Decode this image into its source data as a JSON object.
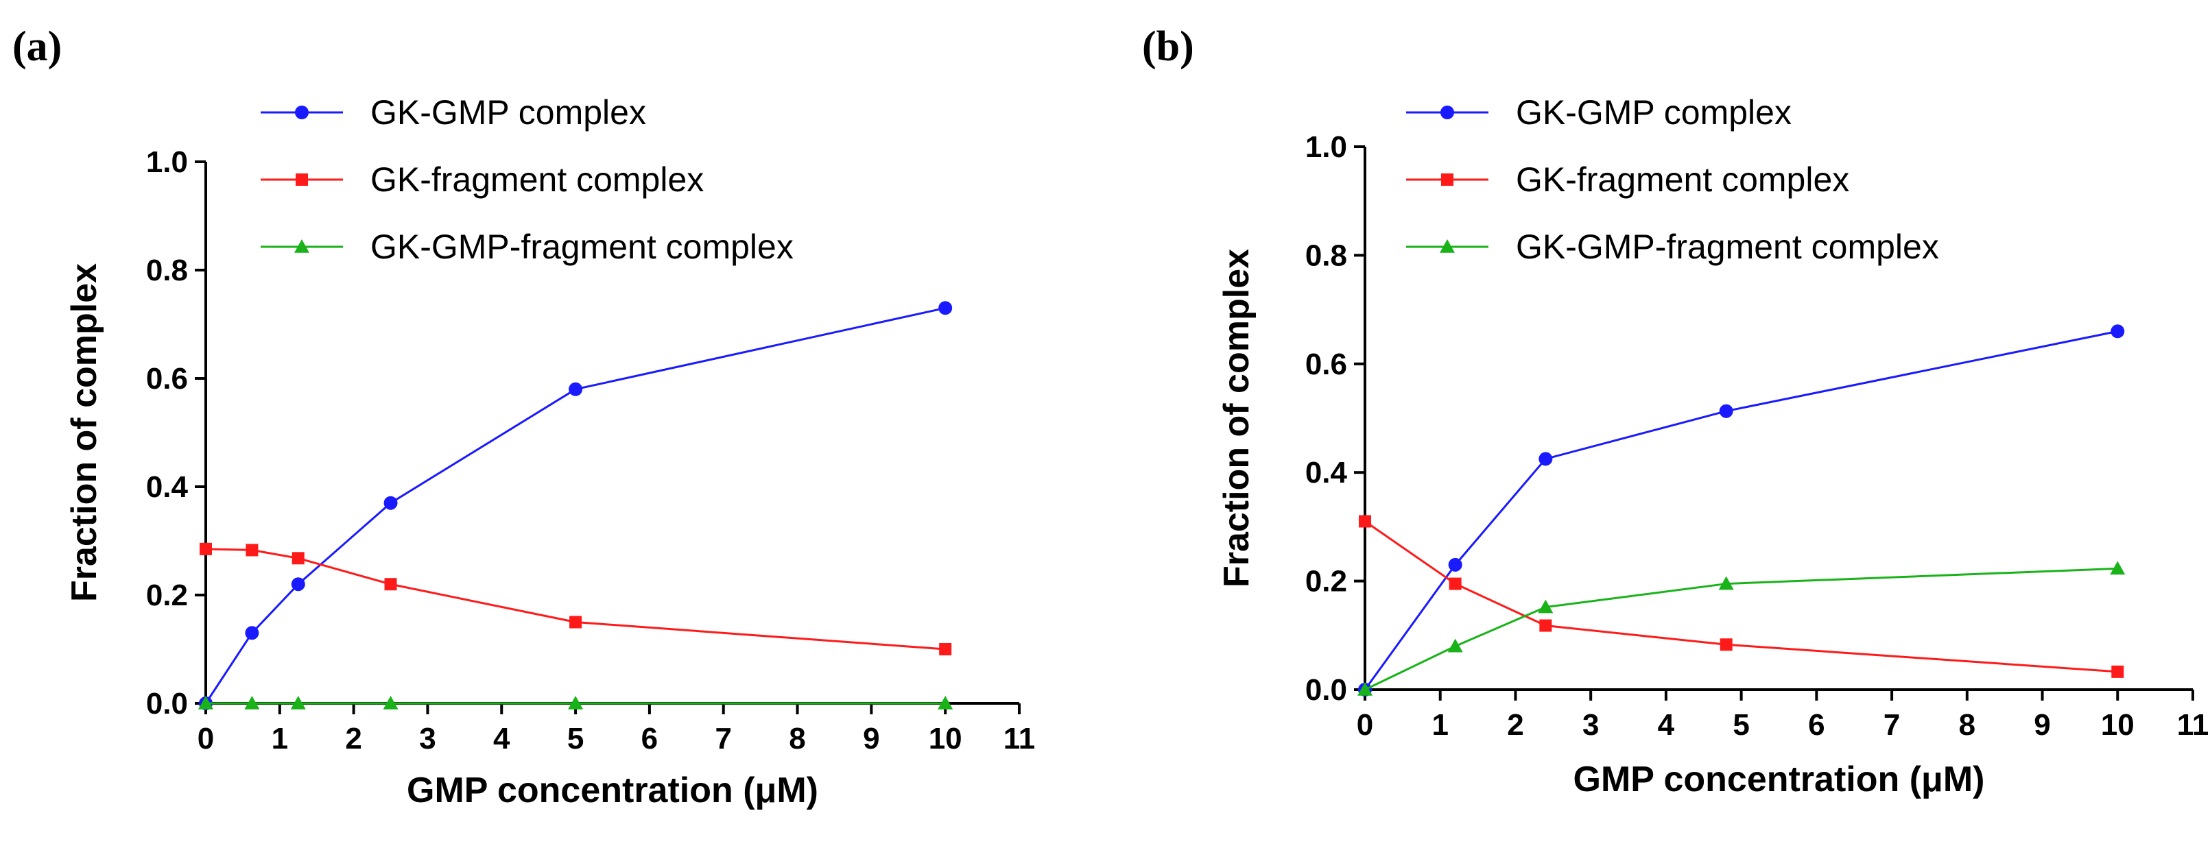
{
  "chart_data": [
    {
      "type": "line",
      "panel_label": "(a)",
      "title": "",
      "xlabel": "GMP concentration (μM)",
      "ylabel": "Fraction of complex",
      "xlim": [
        0,
        11
      ],
      "ylim": [
        0,
        1.0
      ],
      "xticks": [
        "0",
        "1",
        "2",
        "3",
        "4",
        "5",
        "6",
        "7",
        "8",
        "9",
        "10",
        "11"
      ],
      "yticks": [
        "0.0",
        "0.2",
        "0.4",
        "0.6",
        "0.8",
        "1.0"
      ],
      "grid": false,
      "legend_position": "top-left",
      "series": [
        {
          "name": "GK-GMP complex",
          "color": "#1a1aff",
          "marker": "circle",
          "x": [
            0,
            0.625,
            1.25,
            2.5,
            5,
            10
          ],
          "y": [
            0.0,
            0.13,
            0.22,
            0.37,
            0.58,
            0.73
          ]
        },
        {
          "name": "GK-fragment complex",
          "color": "#ff1a1a",
          "marker": "square",
          "x": [
            0,
            0.625,
            1.25,
            2.5,
            5,
            10
          ],
          "y": [
            0.285,
            0.283,
            0.268,
            0.22,
            0.15,
            0.1
          ]
        },
        {
          "name": "GK-GMP-fragment complex",
          "color": "#19b319",
          "marker": "triangle",
          "x": [
            0,
            0.625,
            1.25,
            2.5,
            5,
            10
          ],
          "y": [
            0.0,
            0.0,
            0.0,
            0.0,
            0.0,
            0.0
          ]
        }
      ]
    },
    {
      "type": "line",
      "panel_label": "(b)",
      "title": "",
      "xlabel": "GMP concentration (μM)",
      "ylabel": "Fraction of complex",
      "xlim": [
        0,
        11
      ],
      "ylim": [
        0,
        1.0
      ],
      "xticks": [
        "0",
        "1",
        "2",
        "3",
        "4",
        "5",
        "6",
        "7",
        "8",
        "9",
        "10",
        "11"
      ],
      "yticks": [
        "0.0",
        "0.2",
        "0.4",
        "0.6",
        "0.8",
        "1.0"
      ],
      "grid": false,
      "legend_position": "top-left",
      "series": [
        {
          "name": "GK-GMP complex",
          "color": "#1a1aff",
          "marker": "circle",
          "x": [
            0,
            1.2,
            2.4,
            4.8,
            10
          ],
          "y": [
            0.0,
            0.23,
            0.425,
            0.513,
            0.66
          ]
        },
        {
          "name": "GK-fragment complex",
          "color": "#ff1a1a",
          "marker": "square",
          "x": [
            0,
            1.2,
            2.4,
            4.8,
            10
          ],
          "y": [
            0.31,
            0.195,
            0.118,
            0.083,
            0.033
          ]
        },
        {
          "name": "GK-GMP-fragment complex",
          "color": "#19b319",
          "marker": "triangle",
          "x": [
            0,
            1.2,
            2.4,
            4.8,
            10
          ],
          "y": [
            0.0,
            0.08,
            0.152,
            0.195,
            0.223
          ]
        }
      ]
    }
  ]
}
